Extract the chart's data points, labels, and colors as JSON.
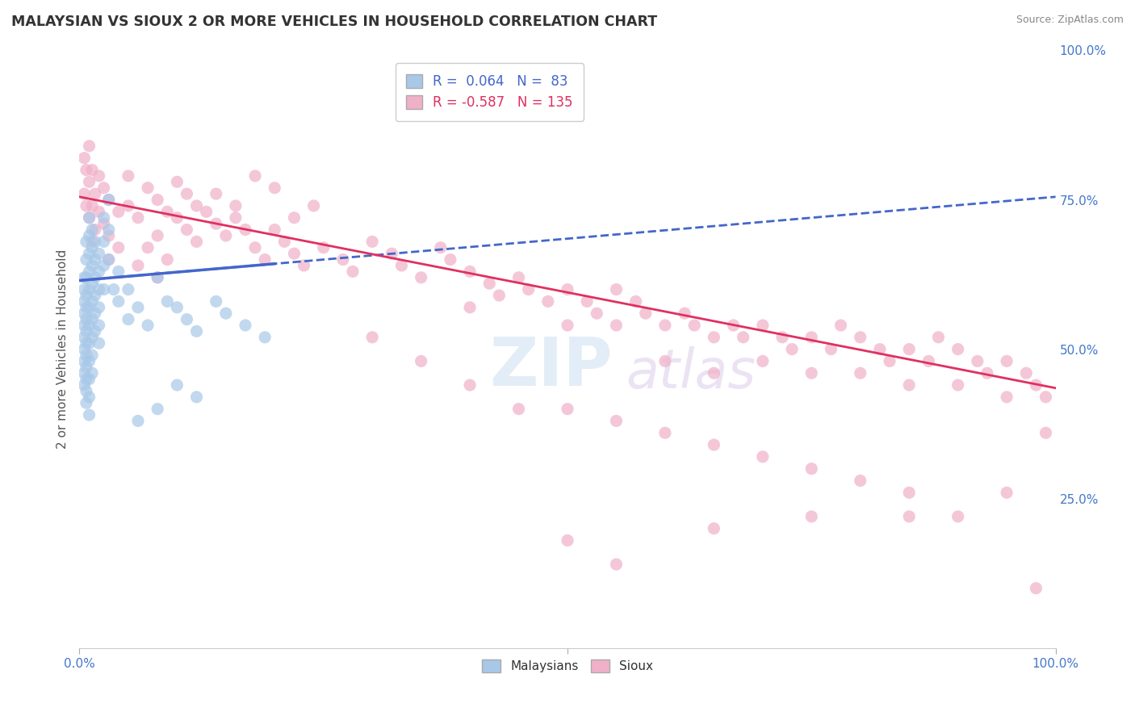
{
  "title": "MALAYSIAN VS SIOUX 2 OR MORE VEHICLES IN HOUSEHOLD CORRELATION CHART",
  "source": "Source: ZipAtlas.com",
  "ylabel": "2 or more Vehicles in Household",
  "xlim": [
    0.0,
    1.0
  ],
  "ylim": [
    0.0,
    1.0
  ],
  "legend_labels": [
    "Malaysians",
    "Sioux"
  ],
  "blue_color": "#a8c8e8",
  "pink_color": "#f0b0c8",
  "blue_line_color": "#4466cc",
  "pink_line_color": "#e03060",
  "blue_R": 0.064,
  "blue_N": 83,
  "pink_R": -0.587,
  "pink_N": 135,
  "background_color": "#ffffff",
  "grid_color": "#cccccc",
  "watermark_top": "ZIP",
  "watermark_bot": "atlas",
  "title_color": "#333333",
  "axis_label_color": "#4477cc",
  "blue_line_start_y": 0.615,
  "blue_line_end_y": 0.755,
  "pink_line_start_y": 0.755,
  "pink_line_end_y": 0.435,
  "blue_scatter": [
    [
      0.005,
      0.62
    ],
    [
      0.005,
      0.6
    ],
    [
      0.005,
      0.58
    ],
    [
      0.005,
      0.56
    ],
    [
      0.005,
      0.54
    ],
    [
      0.005,
      0.52
    ],
    [
      0.005,
      0.5
    ],
    [
      0.005,
      0.48
    ],
    [
      0.005,
      0.46
    ],
    [
      0.005,
      0.44
    ],
    [
      0.007,
      0.68
    ],
    [
      0.007,
      0.65
    ],
    [
      0.007,
      0.62
    ],
    [
      0.007,
      0.59
    ],
    [
      0.007,
      0.57
    ],
    [
      0.007,
      0.55
    ],
    [
      0.007,
      0.53
    ],
    [
      0.007,
      0.51
    ],
    [
      0.007,
      0.49
    ],
    [
      0.007,
      0.47
    ],
    [
      0.007,
      0.45
    ],
    [
      0.007,
      0.43
    ],
    [
      0.007,
      0.41
    ],
    [
      0.01,
      0.72
    ],
    [
      0.01,
      0.69
    ],
    [
      0.01,
      0.66
    ],
    [
      0.01,
      0.63
    ],
    [
      0.01,
      0.6
    ],
    [
      0.01,
      0.57
    ],
    [
      0.01,
      0.54
    ],
    [
      0.01,
      0.51
    ],
    [
      0.01,
      0.48
    ],
    [
      0.01,
      0.45
    ],
    [
      0.01,
      0.42
    ],
    [
      0.01,
      0.39
    ],
    [
      0.013,
      0.7
    ],
    [
      0.013,
      0.67
    ],
    [
      0.013,
      0.64
    ],
    [
      0.013,
      0.61
    ],
    [
      0.013,
      0.58
    ],
    [
      0.013,
      0.55
    ],
    [
      0.013,
      0.52
    ],
    [
      0.013,
      0.49
    ],
    [
      0.013,
      0.46
    ],
    [
      0.016,
      0.68
    ],
    [
      0.016,
      0.65
    ],
    [
      0.016,
      0.62
    ],
    [
      0.016,
      0.59
    ],
    [
      0.016,
      0.56
    ],
    [
      0.016,
      0.53
    ],
    [
      0.02,
      0.66
    ],
    [
      0.02,
      0.63
    ],
    [
      0.02,
      0.6
    ],
    [
      0.02,
      0.57
    ],
    [
      0.02,
      0.54
    ],
    [
      0.02,
      0.51
    ],
    [
      0.025,
      0.72
    ],
    [
      0.025,
      0.68
    ],
    [
      0.025,
      0.64
    ],
    [
      0.025,
      0.6
    ],
    [
      0.03,
      0.75
    ],
    [
      0.03,
      0.7
    ],
    [
      0.03,
      0.65
    ],
    [
      0.035,
      0.6
    ],
    [
      0.04,
      0.63
    ],
    [
      0.04,
      0.58
    ],
    [
      0.05,
      0.6
    ],
    [
      0.05,
      0.55
    ],
    [
      0.06,
      0.57
    ],
    [
      0.07,
      0.54
    ],
    [
      0.08,
      0.62
    ],
    [
      0.09,
      0.58
    ],
    [
      0.1,
      0.57
    ],
    [
      0.11,
      0.55
    ],
    [
      0.12,
      0.53
    ],
    [
      0.14,
      0.58
    ],
    [
      0.15,
      0.56
    ],
    [
      0.17,
      0.54
    ],
    [
      0.19,
      0.52
    ],
    [
      0.1,
      0.44
    ],
    [
      0.12,
      0.42
    ],
    [
      0.08,
      0.4
    ],
    [
      0.06,
      0.38
    ]
  ],
  "pink_scatter": [
    [
      0.005,
      0.82
    ],
    [
      0.005,
      0.76
    ],
    [
      0.007,
      0.8
    ],
    [
      0.007,
      0.74
    ],
    [
      0.01,
      0.84
    ],
    [
      0.01,
      0.78
    ],
    [
      0.01,
      0.72
    ],
    [
      0.013,
      0.8
    ],
    [
      0.013,
      0.74
    ],
    [
      0.013,
      0.68
    ],
    [
      0.016,
      0.76
    ],
    [
      0.016,
      0.7
    ],
    [
      0.02,
      0.79
    ],
    [
      0.02,
      0.73
    ],
    [
      0.025,
      0.77
    ],
    [
      0.025,
      0.71
    ],
    [
      0.03,
      0.75
    ],
    [
      0.03,
      0.69
    ],
    [
      0.04,
      0.73
    ],
    [
      0.04,
      0.67
    ],
    [
      0.05,
      0.79
    ],
    [
      0.05,
      0.74
    ],
    [
      0.06,
      0.72
    ],
    [
      0.07,
      0.77
    ],
    [
      0.08,
      0.75
    ],
    [
      0.08,
      0.69
    ],
    [
      0.09,
      0.73
    ],
    [
      0.1,
      0.78
    ],
    [
      0.1,
      0.72
    ],
    [
      0.11,
      0.76
    ],
    [
      0.11,
      0.7
    ],
    [
      0.12,
      0.74
    ],
    [
      0.12,
      0.68
    ],
    [
      0.13,
      0.73
    ],
    [
      0.14,
      0.71
    ],
    [
      0.15,
      0.69
    ],
    [
      0.16,
      0.72
    ],
    [
      0.17,
      0.7
    ],
    [
      0.18,
      0.67
    ],
    [
      0.19,
      0.65
    ],
    [
      0.2,
      0.7
    ],
    [
      0.21,
      0.68
    ],
    [
      0.22,
      0.66
    ],
    [
      0.23,
      0.64
    ],
    [
      0.25,
      0.67
    ],
    [
      0.27,
      0.65
    ],
    [
      0.28,
      0.63
    ],
    [
      0.3,
      0.68
    ],
    [
      0.32,
      0.66
    ],
    [
      0.33,
      0.64
    ],
    [
      0.35,
      0.62
    ],
    [
      0.37,
      0.67
    ],
    [
      0.38,
      0.65
    ],
    [
      0.4,
      0.63
    ],
    [
      0.4,
      0.57
    ],
    [
      0.42,
      0.61
    ],
    [
      0.43,
      0.59
    ],
    [
      0.45,
      0.62
    ],
    [
      0.46,
      0.6
    ],
    [
      0.48,
      0.58
    ],
    [
      0.5,
      0.6
    ],
    [
      0.5,
      0.54
    ],
    [
      0.52,
      0.58
    ],
    [
      0.53,
      0.56
    ],
    [
      0.55,
      0.6
    ],
    [
      0.55,
      0.54
    ],
    [
      0.57,
      0.58
    ],
    [
      0.58,
      0.56
    ],
    [
      0.6,
      0.54
    ],
    [
      0.6,
      0.48
    ],
    [
      0.62,
      0.56
    ],
    [
      0.63,
      0.54
    ],
    [
      0.65,
      0.52
    ],
    [
      0.65,
      0.46
    ],
    [
      0.67,
      0.54
    ],
    [
      0.68,
      0.52
    ],
    [
      0.7,
      0.54
    ],
    [
      0.7,
      0.48
    ],
    [
      0.72,
      0.52
    ],
    [
      0.73,
      0.5
    ],
    [
      0.75,
      0.52
    ],
    [
      0.75,
      0.46
    ],
    [
      0.77,
      0.5
    ],
    [
      0.78,
      0.54
    ],
    [
      0.8,
      0.52
    ],
    [
      0.8,
      0.46
    ],
    [
      0.82,
      0.5
    ],
    [
      0.83,
      0.48
    ],
    [
      0.85,
      0.5
    ],
    [
      0.85,
      0.44
    ],
    [
      0.87,
      0.48
    ],
    [
      0.88,
      0.52
    ],
    [
      0.9,
      0.5
    ],
    [
      0.9,
      0.44
    ],
    [
      0.92,
      0.48
    ],
    [
      0.93,
      0.46
    ],
    [
      0.95,
      0.48
    ],
    [
      0.95,
      0.42
    ],
    [
      0.97,
      0.46
    ],
    [
      0.98,
      0.44
    ],
    [
      0.99,
      0.42
    ],
    [
      0.99,
      0.36
    ],
    [
      0.3,
      0.52
    ],
    [
      0.35,
      0.48
    ],
    [
      0.4,
      0.44
    ],
    [
      0.45,
      0.4
    ],
    [
      0.5,
      0.4
    ],
    [
      0.55,
      0.38
    ],
    [
      0.6,
      0.36
    ],
    [
      0.65,
      0.34
    ],
    [
      0.7,
      0.32
    ],
    [
      0.75,
      0.3
    ],
    [
      0.8,
      0.28
    ],
    [
      0.85,
      0.26
    ],
    [
      0.5,
      0.18
    ],
    [
      0.55,
      0.14
    ],
    [
      0.65,
      0.2
    ],
    [
      0.75,
      0.22
    ],
    [
      0.85,
      0.22
    ],
    [
      0.9,
      0.22
    ],
    [
      0.95,
      0.26
    ],
    [
      0.98,
      0.1
    ],
    [
      0.07,
      0.67
    ],
    [
      0.09,
      0.65
    ],
    [
      0.06,
      0.64
    ],
    [
      0.08,
      0.62
    ],
    [
      0.14,
      0.76
    ],
    [
      0.16,
      0.74
    ],
    [
      0.18,
      0.79
    ],
    [
      0.2,
      0.77
    ],
    [
      0.22,
      0.72
    ],
    [
      0.24,
      0.74
    ],
    [
      0.03,
      0.65
    ]
  ]
}
